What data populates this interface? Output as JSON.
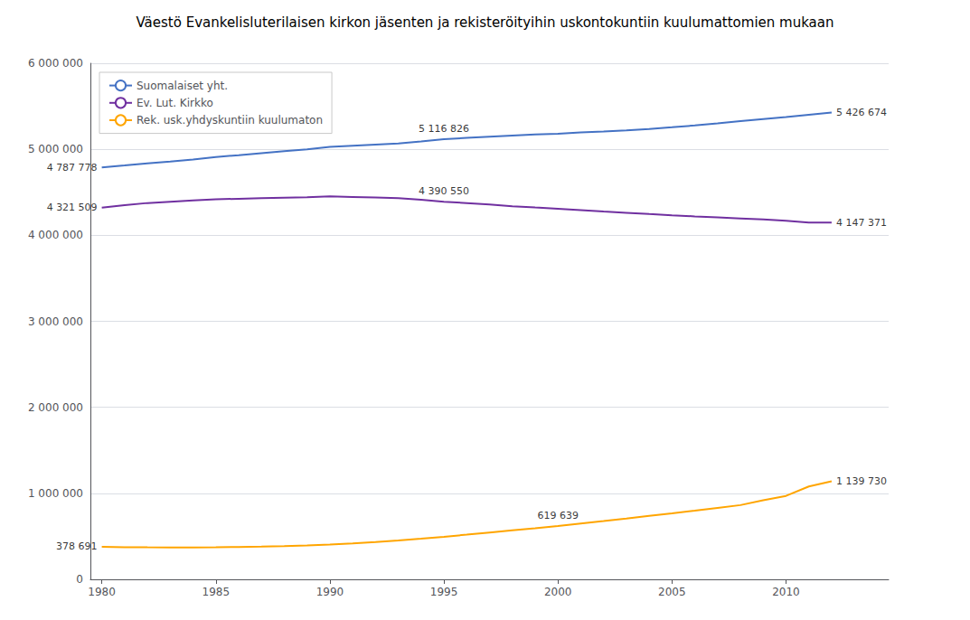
{
  "chart_data": {
    "type": "line",
    "title": "Väestö Evankelisluterilaisen kirkon jäsenten ja rekisteröityihin uskontokuntiin kuulumattomien mukaan",
    "x": [
      1980,
      1981,
      1982,
      1983,
      1984,
      1985,
      1986,
      1987,
      1988,
      1989,
      1990,
      1991,
      1992,
      1993,
      1994,
      1995,
      1996,
      1997,
      1998,
      1999,
      2000,
      2001,
      2002,
      2003,
      2004,
      2005,
      2006,
      2007,
      2008,
      2009,
      2010,
      2011,
      2012
    ],
    "series": [
      {
        "name": "Suomalaiset yht.",
        "color": "#4472C4",
        "values": [
          4787778,
          4812150,
          4836981,
          4856851,
          4881797,
          4910619,
          4930745,
          4954359,
          4978070,
          4998478,
          5029002,
          5042359,
          5055172,
          5066447,
          5090749,
          5116826,
          5132320,
          5147349,
          5159646,
          5171302,
          5181115,
          5194901,
          5206295,
          5219732,
          5236611,
          5255580,
          5276955,
          5300484,
          5326314,
          5351427,
          5375276,
          5401267,
          5426674
        ],
        "annotations": [
          {
            "x": 1980,
            "y": 4787778,
            "label": "4 787 778"
          },
          {
            "x": 1995,
            "y": 5116826,
            "label": "5 116 826"
          },
          {
            "x": 2012,
            "y": 5426674,
            "label": "5 426 674"
          }
        ]
      },
      {
        "name": "Ev. Lut. Kirkko",
        "color": "#7030A0",
        "values": [
          4321509,
          4351400,
          4375200,
          4390000,
          4405000,
          4418000,
          4425000,
          4432000,
          4438000,
          4442000,
          4452000,
          4446000,
          4440000,
          4432000,
          4413000,
          4390550,
          4374000,
          4357000,
          4338000,
          4323000,
          4308600,
          4293000,
          4277000,
          4262000,
          4247000,
          4233000,
          4220000,
          4208000,
          4196000,
          4184000,
          4168000,
          4148000,
          4147371
        ],
        "annotations": [
          {
            "x": 1980,
            "y": 4321509,
            "label": "4 321 509"
          },
          {
            "x": 1995,
            "y": 4390550,
            "label": "4 390 550"
          },
          {
            "x": 2012,
            "y": 4147371,
            "label": "4 147 371"
          }
        ]
      },
      {
        "name": "Rek. usk.yhdyskuntiin kuulumaton",
        "color": "#FFA500",
        "values": [
          378691,
          374000,
          372000,
          371000,
          371000,
          373000,
          376000,
          381000,
          387000,
          394000,
          404000,
          418000,
          433000,
          452000,
          472000,
          495000,
          519000,
          544000,
          569000,
          594000,
          619639,
          648000,
          677000,
          707000,
          738000,
          768000,
          799000,
          831000,
          863000,
          920000,
          970000,
          1080000,
          1139730
        ],
        "annotations": [
          {
            "x": 1980,
            "y": 378691,
            "label": "378 691"
          },
          {
            "x": 2000,
            "y": 619639,
            "label": "619 639"
          },
          {
            "x": 2012,
            "y": 1139730,
            "label": "1 139 730"
          }
        ]
      }
    ],
    "xlim": [
      1979.5,
      2014.5
    ],
    "xticks": [
      1980,
      1985,
      1990,
      1995,
      2000,
      2005,
      2010
    ],
    "ylim": [
      0,
      6000000
    ],
    "yticks": [
      0,
      {
        "value": 1000000,
        "label": "1 000 000"
      },
      {
        "value": 2000000,
        "label": "2 000 000"
      },
      {
        "value": 3000000,
        "label": "3 000 000"
      },
      {
        "value": 4000000,
        "label": "4 000 000"
      },
      {
        "value": 5000000,
        "label": "5 000 000"
      },
      {
        "value": 6000000,
        "label": "6 000 000"
      }
    ],
    "grid": true,
    "legend": "upper left"
  }
}
